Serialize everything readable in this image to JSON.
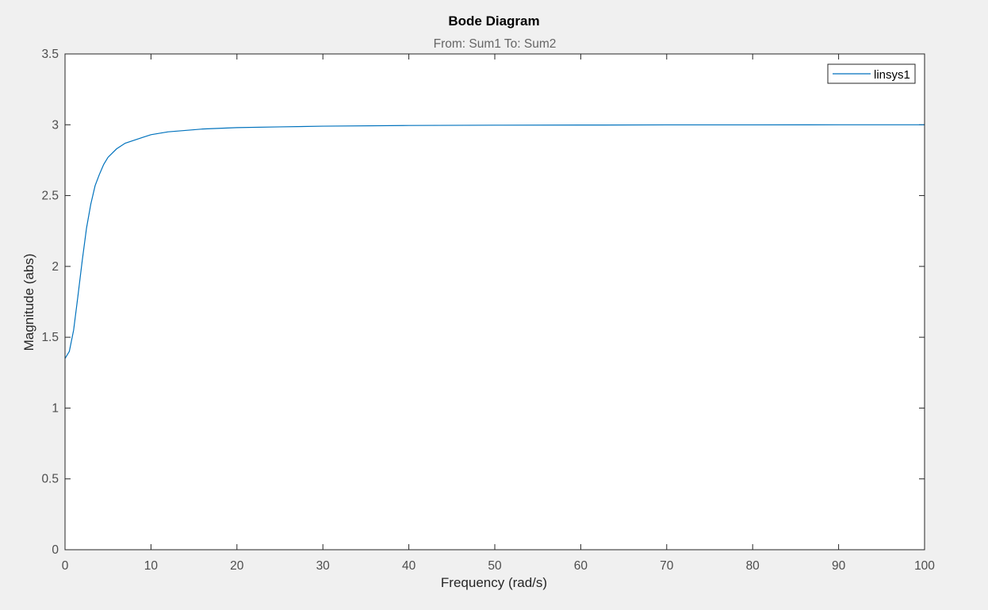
{
  "chart_data": {
    "type": "line",
    "title": "Bode Diagram",
    "subtitle": "From: Sum1  To: Sum2",
    "xlabel": "Frequency  (rad/s)",
    "ylabel": "Magnitude (abs)",
    "xlim": [
      0,
      100
    ],
    "ylim": [
      0,
      3.5
    ],
    "x_ticks": [
      0,
      10,
      20,
      30,
      40,
      50,
      60,
      70,
      80,
      90,
      100
    ],
    "x_tick_labels": [
      "0",
      "10",
      "20",
      "30",
      "40",
      "50",
      "60",
      "70",
      "80",
      "90",
      "100"
    ],
    "y_ticks": [
      0,
      0.5,
      1,
      1.5,
      2,
      2.5,
      3,
      3.5
    ],
    "y_tick_labels": [
      "0",
      "0.5",
      "1",
      "1.5",
      "2",
      "2.5",
      "3",
      "3.5"
    ],
    "grid": false,
    "legend_position": "top-right",
    "colors": {
      "series": "#0072bd",
      "axes": "#262626",
      "tick_text": "#4d4d4d",
      "subtitle": "#656565",
      "background": "#f0f0f0",
      "plot_bg": "#ffffff"
    },
    "series": [
      {
        "name": "linsys1",
        "x": [
          0,
          0.5,
          1,
          1.5,
          2,
          2.5,
          3,
          3.5,
          4,
          4.5,
          5,
          6,
          7,
          8,
          9,
          10,
          12,
          14,
          16,
          18,
          20,
          25,
          30,
          40,
          50,
          60,
          70,
          80,
          90,
          100
        ],
        "values": [
          1.35,
          1.4,
          1.55,
          1.79,
          2.04,
          2.27,
          2.44,
          2.57,
          2.65,
          2.72,
          2.77,
          2.83,
          2.87,
          2.89,
          2.91,
          2.93,
          2.95,
          2.96,
          2.97,
          2.975,
          2.98,
          2.985,
          2.99,
          2.995,
          2.997,
          2.998,
          2.999,
          2.999,
          3.0,
          3.0
        ]
      }
    ]
  }
}
